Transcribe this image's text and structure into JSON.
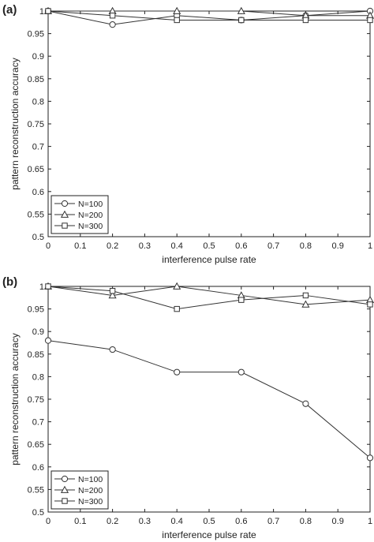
{
  "chart_data": [
    {
      "type": "line",
      "panel_label": "(a)",
      "xlabel": "interference pulse rate",
      "ylabel": "pattern reconstruction accuracy",
      "xlim": [
        0,
        1
      ],
      "ylim": [
        0.5,
        1
      ],
      "x_ticks": [
        "0",
        "0.1",
        "0.2",
        "0.3",
        "0.4",
        "0.5",
        "0.6",
        "0.7",
        "0.8",
        "0.9",
        "1"
      ],
      "y_ticks": [
        "0.5",
        "0.55",
        "0.6",
        "0.65",
        "0.7",
        "0.75",
        "0.8",
        "0.85",
        "0.9",
        "0.95",
        "1"
      ],
      "grid": false,
      "legend_position": "bottom-left",
      "x": [
        0,
        0.2,
        0.4,
        0.6,
        0.8,
        1
      ],
      "series": [
        {
          "name": "N=100",
          "marker": "circle",
          "values": [
            1.0,
            0.97,
            0.99,
            0.98,
            0.99,
            1.0
          ]
        },
        {
          "name": "N=200",
          "marker": "triangle",
          "values": [
            1.0,
            1.0,
            1.0,
            1.0,
            0.99,
            0.99
          ]
        },
        {
          "name": "N=300",
          "marker": "square",
          "values": [
            1.0,
            0.99,
            0.98,
            0.98,
            0.98,
            0.98
          ]
        }
      ]
    },
    {
      "type": "line",
      "panel_label": "(b)",
      "xlabel": "interference pulse rate",
      "ylabel": "pattern reconstruction accuracy",
      "xlim": [
        0,
        1
      ],
      "ylim": [
        0.5,
        1
      ],
      "x_ticks": [
        "0",
        "0.1",
        "0.2",
        "0.3",
        "0.4",
        "0.5",
        "0.6",
        "0.7",
        "0.8",
        "0.9",
        "1"
      ],
      "y_ticks": [
        "0.5",
        "0.55",
        "0.6",
        "0.65",
        "0.7",
        "0.75",
        "0.8",
        "0.85",
        "0.9",
        "0.95",
        "1"
      ],
      "grid": false,
      "legend_position": "bottom-left",
      "x": [
        0,
        0.2,
        0.4,
        0.6,
        0.8,
        1
      ],
      "series": [
        {
          "name": "N=100",
          "marker": "circle",
          "values": [
            0.88,
            0.86,
            0.81,
            0.81,
            0.74,
            0.62
          ]
        },
        {
          "name": "N=200",
          "marker": "triangle",
          "values": [
            1.0,
            0.98,
            1.0,
            0.98,
            0.96,
            0.97
          ]
        },
        {
          "name": "N=300",
          "marker": "square",
          "values": [
            1.0,
            0.99,
            0.95,
            0.97,
            0.98,
            0.96
          ]
        }
      ]
    }
  ],
  "colors": {
    "line": "#333333",
    "axis": "#222222",
    "text": "#222222",
    "background": "#ffffff"
  }
}
